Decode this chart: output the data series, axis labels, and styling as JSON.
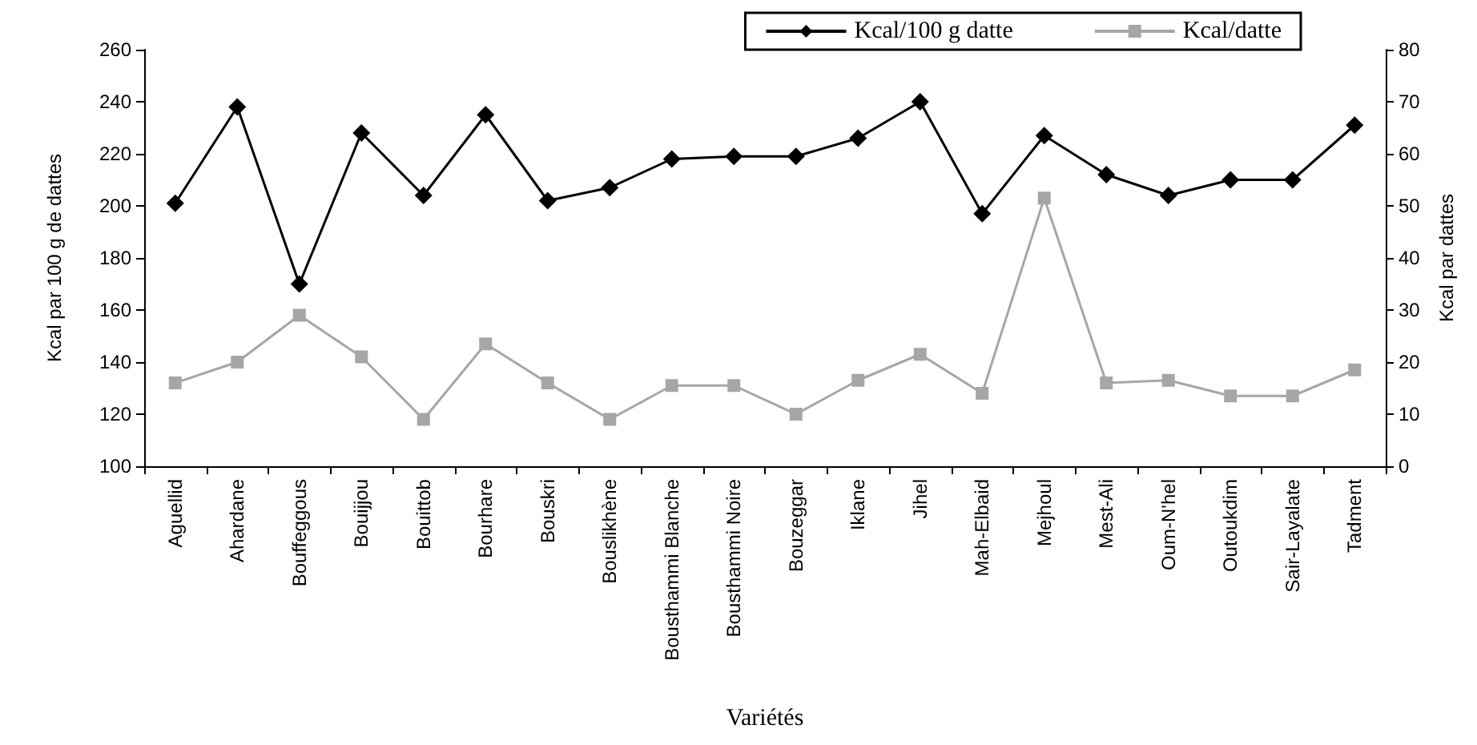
{
  "chart_data": {
    "type": "line",
    "categories": [
      "Aguellid",
      "Ahardane",
      "Bouffeggous",
      "Bouijjou",
      "Bouittob",
      "Bourhare",
      "Bouskri",
      "Bouslikhène",
      "Bousthammi Blanche",
      "Bousthammi Noire",
      "Bouzeggar",
      "Iklane",
      "Jihel",
      "Mah-Elbaid",
      "Mejhoul",
      "Mest-Ali",
      "Oum-N'hel",
      "Outoukdim",
      "Sair-Layalate",
      "Tadment"
    ],
    "series": [
      {
        "name": "Kcal/100 g datte",
        "color": "#000000",
        "marker": "diamond",
        "values": [
          201,
          238,
          170,
          228,
          204,
          235,
          202,
          207,
          218,
          219,
          219,
          226,
          240,
          197,
          227,
          212,
          204,
          210,
          210,
          231
        ]
      },
      {
        "name": "Kcal/datte",
        "color": "#a6a6a6",
        "marker": "square",
        "axis": "y2",
        "values": [
          16,
          20,
          29,
          21,
          9,
          23.5,
          16,
          9,
          15.5,
          15.5,
          10,
          16.5,
          21.5,
          14,
          51.5,
          16,
          16.5,
          13.5,
          13.5,
          18.5
        ]
      }
    ],
    "xlabel": "Variétés",
    "ylabel": "Kcal par 100 g de dattes",
    "y2label": "Kcal par dattes",
    "ylim": [
      100,
      260
    ],
    "yticks": [
      100,
      120,
      140,
      160,
      180,
      200,
      220,
      240,
      260
    ],
    "y2lim": [
      0,
      80
    ],
    "y2ticks": [
      0,
      10,
      20,
      30,
      40,
      50,
      60,
      70,
      80
    ],
    "grid": false,
    "legend": "top right",
    "line_style": "solid"
  }
}
